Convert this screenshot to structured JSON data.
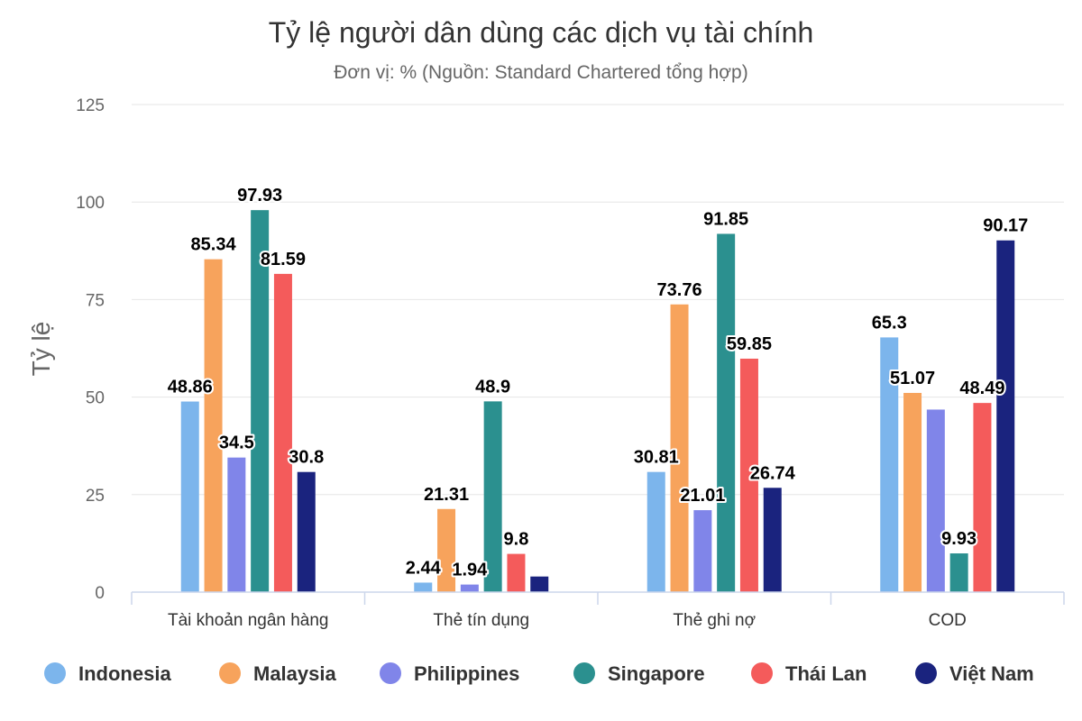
{
  "chart_data": {
    "type": "bar",
    "title": "Tỷ lệ người dân dùng các dịch vụ tài chính",
    "subtitle": "Đơn vị: % (Nguồn: Standard Chartered tổng hợp)",
    "ylabel": "Tỷ lệ",
    "xlabel": "",
    "ylim": [
      0,
      125
    ],
    "yticks": [
      0,
      25,
      50,
      75,
      100,
      125
    ],
    "grid": true,
    "legend_position": "bottom",
    "categories": [
      "Tài khoản ngân hàng",
      "Thẻ tín dụng",
      "Thẻ ghi nợ",
      "COD"
    ],
    "series": [
      {
        "name": "Indonesia",
        "color": "#7cb5ec",
        "values": [
          48.86,
          2.44,
          30.81,
          65.3
        ],
        "labels": [
          "48.86",
          "2.44",
          "30.81",
          "65.3"
        ]
      },
      {
        "name": "Malaysia",
        "color": "#f7a35c",
        "values": [
          85.34,
          21.31,
          73.76,
          51.07
        ],
        "labels": [
          "85.34",
          "21.31",
          "73.76",
          "51.07"
        ]
      },
      {
        "name": "Philippines",
        "color": "#8085e9",
        "values": [
          34.5,
          1.94,
          21.01,
          46.8
        ],
        "labels": [
          "34.5",
          "1.94",
          "21.01",
          ""
        ]
      },
      {
        "name": "Singapore",
        "color": "#2b908f",
        "values": [
          97.93,
          48.9,
          91.85,
          9.93
        ],
        "labels": [
          "97.93",
          "48.9",
          "91.85",
          "9.93"
        ]
      },
      {
        "name": "Thái Lan",
        "color": "#f45b5b",
        "values": [
          81.59,
          9.8,
          59.85,
          48.49
        ],
        "labels": [
          "81.59",
          "9.8",
          "59.85",
          "48.49"
        ]
      },
      {
        "name": "Việt Nam",
        "color": "#1a237e",
        "values": [
          30.8,
          4.0,
          26.74,
          90.17
        ],
        "labels": [
          "30.8",
          "",
          "26.74",
          "90.17"
        ]
      }
    ]
  }
}
